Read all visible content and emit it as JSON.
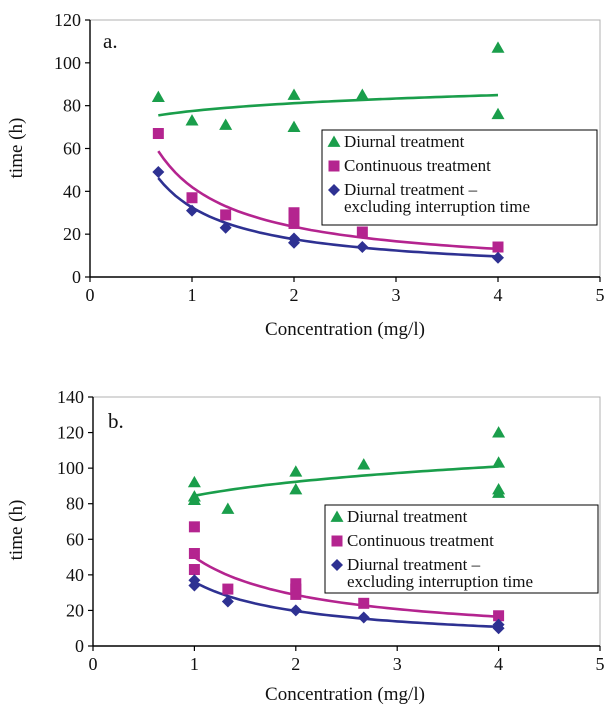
{
  "colors": {
    "diurnal": "#1a9e4b",
    "continuous": "#b4248f",
    "excluding": "#2e3192",
    "axis": "#000000",
    "plot_border": "#b0b0b0"
  },
  "chart_data": [
    {
      "type": "scatter",
      "panel_label": "a.",
      "xlabel": "Concentration (mg/l)",
      "ylabel": "time (h)",
      "xlim": [
        0,
        5
      ],
      "ylim": [
        0,
        120
      ],
      "x_ticks": [
        "0",
        "1",
        "2",
        "3",
        "4",
        "5"
      ],
      "y_ticks": [
        "0",
        "20",
        "40",
        "60",
        "80",
        "100",
        "120"
      ],
      "grid": false,
      "legend_position": "right-center",
      "series": [
        {
          "name": "Diurnal treatment",
          "marker": "triangle",
          "color": "#1a9e4b",
          "points": [
            [
              0.67,
              84
            ],
            [
              1,
              73
            ],
            [
              1.33,
              71
            ],
            [
              2,
              85
            ],
            [
              2,
              70
            ],
            [
              2.67,
              85
            ],
            [
              4,
              107
            ],
            [
              4,
              76
            ]
          ],
          "trend": {
            "kind": "power",
            "a": 77.5,
            "b": 0.066,
            "from": 0.67,
            "to": 4
          }
        },
        {
          "name": "Continuous treatment",
          "marker": "square",
          "color": "#b4248f",
          "points": [
            [
              0.67,
              67
            ],
            [
              1,
              37
            ],
            [
              1.33,
              29
            ],
            [
              2,
              30
            ],
            [
              2,
              27
            ],
            [
              2,
              25
            ],
            [
              2.67,
              21
            ],
            [
              4,
              14
            ]
          ],
          "trend": {
            "kind": "power",
            "a": 42,
            "b": -0.84,
            "from": 0.67,
            "to": 4
          }
        },
        {
          "name": "Diurnal treatment –\nexcluding interruption time",
          "marker": "diamond",
          "color": "#2e3192",
          "points": [
            [
              0.67,
              49
            ],
            [
              1,
              31
            ],
            [
              1.33,
              23
            ],
            [
              2,
              18
            ],
            [
              2,
              16
            ],
            [
              2.67,
              14
            ],
            [
              4,
              9
            ]
          ],
          "trend": {
            "kind": "power",
            "a": 32.5,
            "b": -0.88,
            "from": 0.67,
            "to": 4
          }
        }
      ]
    },
    {
      "type": "scatter",
      "panel_label": "b.",
      "xlabel": "Concentration (mg/l)",
      "ylabel": "time (h)",
      "xlim": [
        0,
        5
      ],
      "ylim": [
        0,
        140
      ],
      "x_ticks": [
        "0",
        "1",
        "2",
        "3",
        "4",
        "5"
      ],
      "y_ticks": [
        "0",
        "20",
        "40",
        "60",
        "80",
        "100",
        "120",
        "140"
      ],
      "grid": false,
      "legend_position": "right-center",
      "series": [
        {
          "name": "Diurnal treatment",
          "marker": "triangle",
          "color": "#1a9e4b",
          "points": [
            [
              1,
              92
            ],
            [
              1,
              84
            ],
            [
              1,
              82
            ],
            [
              1.33,
              77
            ],
            [
              2,
              98
            ],
            [
              2,
              88
            ],
            [
              2.67,
              102
            ],
            [
              4,
              120
            ],
            [
              4,
              103
            ],
            [
              4,
              88
            ],
            [
              4,
              86
            ]
          ],
          "trend": {
            "kind": "power",
            "a": 84.5,
            "b": 0.128,
            "from": 1,
            "to": 4
          }
        },
        {
          "name": "Continuous treatment",
          "marker": "square",
          "color": "#b4248f",
          "points": [
            [
              1,
              67
            ],
            [
              1,
              52
            ],
            [
              1,
              43
            ],
            [
              1.33,
              32
            ],
            [
              2,
              35
            ],
            [
              2,
              32
            ],
            [
              2,
              29
            ],
            [
              2.67,
              24
            ],
            [
              4,
              17
            ]
          ],
          "trend": {
            "kind": "power",
            "a": 50,
            "b": -0.8,
            "from": 1,
            "to": 4
          }
        },
        {
          "name": "Diurnal treatment –\nexcluding interruption time",
          "marker": "diamond",
          "color": "#2e3192",
          "points": [
            [
              1,
              37
            ],
            [
              1,
              34
            ],
            [
              1.33,
              25
            ],
            [
              2,
              20
            ],
            [
              2.67,
              16
            ],
            [
              4,
              12
            ],
            [
              4,
              10
            ]
          ],
          "trend": {
            "kind": "power",
            "a": 36,
            "b": -0.87,
            "from": 1,
            "to": 4
          }
        }
      ]
    }
  ]
}
